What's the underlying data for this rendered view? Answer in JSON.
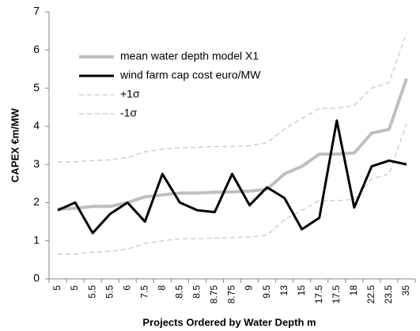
{
  "chart_data": {
    "type": "line",
    "x_label": "Projects Ordered by Water Depth m",
    "y_label": "CAPEX €m/MW",
    "categories": [
      "5",
      "5",
      "5.5",
      "5.5",
      "6",
      "7.5",
      "8",
      "8.5",
      "8.5",
      "8.75",
      "8.75",
      "9",
      "9.5",
      "13",
      "15",
      "17.5",
      "17.5",
      "18",
      "22.5",
      "23.5",
      "35"
    ],
    "series": [
      {
        "name": "mean water depth model X1",
        "color": "#bfbfbf",
        "line_style": "solid",
        "values": [
          1.83,
          1.85,
          1.9,
          1.9,
          2.0,
          2.15,
          2.2,
          2.25,
          2.25,
          2.27,
          2.28,
          2.3,
          2.35,
          2.75,
          2.95,
          3.27,
          3.27,
          3.3,
          3.82,
          3.92,
          5.25
        ]
      },
      {
        "name": "wind farm cap cost euro/MW",
        "color": "#000000",
        "line_style": "solid",
        "values": [
          1.8,
          2.0,
          1.2,
          1.7,
          2.0,
          1.5,
          2.75,
          2.0,
          1.8,
          1.75,
          2.75,
          1.93,
          2.4,
          2.12,
          1.3,
          1.6,
          4.15,
          1.87,
          2.95,
          3.1,
          3.0
        ]
      },
      {
        "name": "+1σ",
        "color": "#c8c8c8",
        "line_style": "dashed",
        "values": [
          3.07,
          3.07,
          3.1,
          3.12,
          3.18,
          3.33,
          3.4,
          3.44,
          3.45,
          3.47,
          3.47,
          3.49,
          3.57,
          3.93,
          4.2,
          4.47,
          4.47,
          4.55,
          5.0,
          5.15,
          6.45
        ]
      },
      {
        "name": "-1σ",
        "color": "#c8c8c8",
        "line_style": "dashed",
        "values": [
          0.65,
          0.65,
          0.7,
          0.72,
          0.78,
          0.93,
          1.0,
          1.05,
          1.05,
          1.07,
          1.08,
          1.1,
          1.15,
          1.55,
          1.8,
          2.05,
          2.05,
          2.08,
          2.62,
          2.75,
          4.08
        ]
      }
    ],
    "ylim": [
      0,
      7
    ],
    "yticks": [
      0,
      1,
      2,
      3,
      4,
      5,
      6,
      7
    ],
    "grid": false,
    "legend": "upper left"
  }
}
